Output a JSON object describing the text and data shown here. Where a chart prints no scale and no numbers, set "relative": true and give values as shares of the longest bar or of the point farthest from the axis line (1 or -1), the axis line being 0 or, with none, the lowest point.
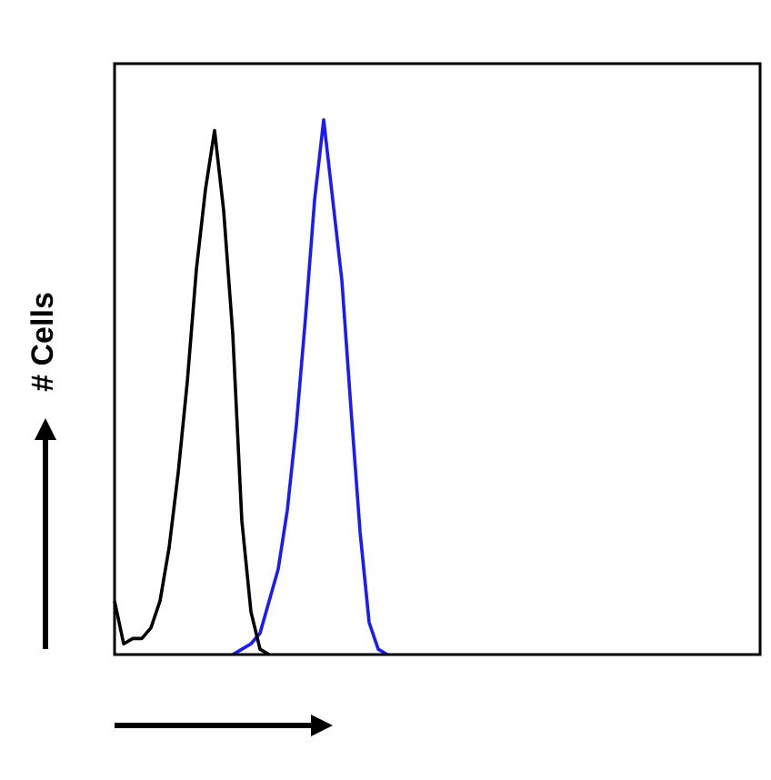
{
  "chart_data": {
    "type": "line",
    "ylabel": "# Cells",
    "relative": true,
    "tick_labels": false,
    "marker": "none",
    "categories": [
      null,
      null,
      null,
      null,
      null,
      null,
      null,
      null,
      null,
      null,
      null,
      null,
      null,
      null,
      null,
      null,
      null,
      null,
      null,
      null,
      null,
      null,
      null,
      null,
      null,
      null,
      null,
      null,
      null,
      null,
      null,
      null,
      null,
      null,
      null,
      null,
      null,
      null,
      null,
      null,
      null,
      null,
      null,
      null,
      null,
      null,
      null,
      null,
      null,
      null,
      null,
      null,
      null,
      null,
      null,
      null,
      null,
      null,
      null,
      null,
      null,
      null,
      null,
      null,
      null,
      null,
      null,
      null,
      null,
      null,
      null,
      null
    ],
    "series": [
      {
        "color": "#000000",
        "values": [
          0.1,
          0.02,
          0.03,
          0.03,
          0.05,
          0.1,
          0.2,
          0.34,
          0.51,
          0.72,
          0.87,
          0.98,
          0.83,
          0.6,
          0.25,
          0.08,
          0.01,
          0,
          null,
          null,
          null,
          null,
          null,
          null,
          null,
          null,
          null,
          null,
          null,
          null,
          null,
          null,
          null,
          null,
          null,
          null,
          null,
          null,
          null,
          null,
          null,
          null,
          null,
          null,
          null,
          null,
          null,
          null,
          null,
          null,
          null,
          null,
          null,
          null,
          null,
          null,
          null,
          null,
          null,
          null,
          null,
          null,
          null,
          null,
          null,
          null,
          null,
          null,
          null,
          null,
          null,
          null
        ]
      },
      {
        "color": "#1a1aff",
        "values": [
          null,
          null,
          null,
          null,
          null,
          null,
          null,
          null,
          null,
          null,
          null,
          null,
          null,
          0,
          0.01,
          0.02,
          0.04,
          0.1,
          0.16,
          0.27,
          0.43,
          0.63,
          0.85,
          1,
          0.85,
          0.7,
          0.46,
          0.23,
          0.06,
          0.01,
          0,
          null,
          null,
          null,
          null,
          null,
          null,
          null,
          null,
          null,
          null,
          null,
          null,
          null,
          null,
          null,
          null,
          null,
          null,
          null,
          null,
          null,
          null,
          null,
          null,
          null,
          null,
          null,
          null,
          null,
          null,
          null,
          null,
          null,
          null,
          null,
          null,
          null,
          null,
          null,
          null,
          null
        ]
      }
    ]
  }
}
